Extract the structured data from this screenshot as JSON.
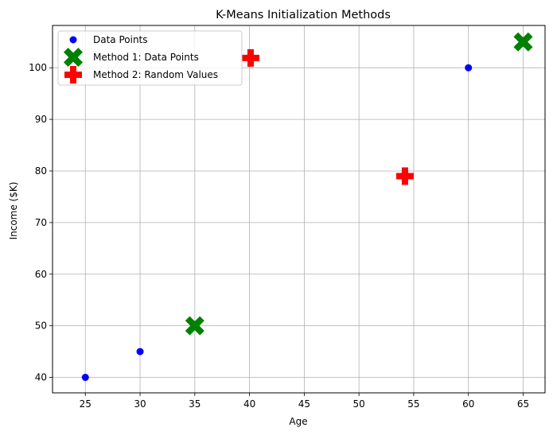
{
  "chart_data": {
    "type": "scatter",
    "title": "K-Means Initialization Methods",
    "xlabel": "Age",
    "ylabel": "Income ($K)",
    "xlim": [
      22.0,
      67.0
    ],
    "ylim": [
      37.0,
      108.2
    ],
    "xticks": [
      25,
      30,
      35,
      40,
      45,
      50,
      55,
      60,
      65
    ],
    "yticks": [
      40,
      50,
      60,
      70,
      80,
      90,
      100
    ],
    "grid": true,
    "legend_position": "top-left",
    "series": [
      {
        "name": "Data Points",
        "marker": "circle",
        "color": "#0000ff",
        "points": [
          {
            "x": 25,
            "y": 40
          },
          {
            "x": 30,
            "y": 45
          },
          {
            "x": 35,
            "y": 50
          },
          {
            "x": 40,
            "y": 102
          },
          {
            "x": 60,
            "y": 100
          },
          {
            "x": 65,
            "y": 105
          }
        ]
      },
      {
        "name": "Method 1: Data Points",
        "marker": "x-filled",
        "color": "#008000",
        "points": [
          {
            "x": 35,
            "y": 50
          },
          {
            "x": 65,
            "y": 105
          }
        ]
      },
      {
        "name": "Method 2: Random Values",
        "marker": "plus-filled",
        "color": "#ff0000",
        "points": [
          {
            "x": 40.1,
            "y": 101.9
          },
          {
            "x": 54.2,
            "y": 79.0
          }
        ]
      }
    ]
  }
}
